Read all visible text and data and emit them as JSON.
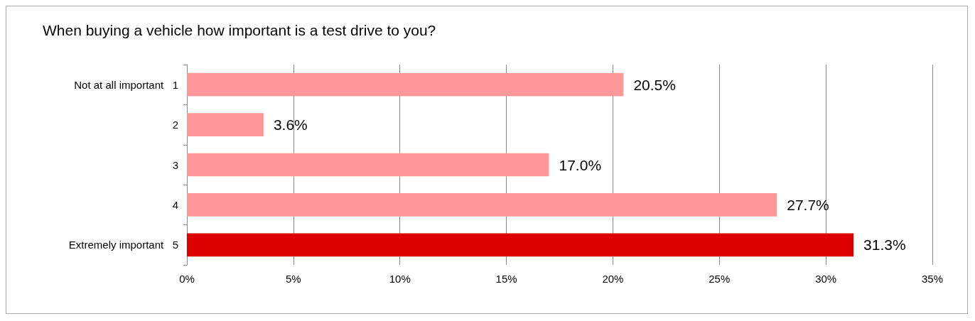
{
  "chart_data": {
    "type": "bar",
    "orientation": "horizontal",
    "title": "When buying a vehicle how important is a test drive to you?",
    "categories": [
      "Not at all important   1",
      "2",
      "3",
      "4",
      "Extremely important   5"
    ],
    "values": [
      20.5,
      3.6,
      17.0,
      27.7,
      31.3
    ],
    "colors": [
      "#ff9999",
      "#ff9999",
      "#ff9999",
      "#ff9999",
      "#dd0000"
    ],
    "value_labels": [
      "20.5%",
      "3.6%",
      "17.0%",
      "27.7%",
      "31.3%"
    ],
    "xlim": [
      0,
      35
    ],
    "xticks": [
      {
        "value": 0,
        "label": "0%"
      },
      {
        "value": 5,
        "label": "5%"
      },
      {
        "value": 10,
        "label": "10%"
      },
      {
        "value": 15,
        "label": "15%"
      },
      {
        "value": 20,
        "label": "20%"
      },
      {
        "value": 25,
        "label": "25%"
      },
      {
        "value": 30,
        "label": "30%"
      },
      {
        "value": 35,
        "label": "35%"
      }
    ],
    "grid": "x"
  }
}
